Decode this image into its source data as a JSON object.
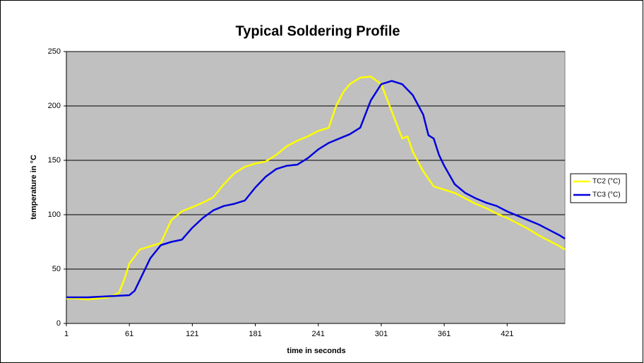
{
  "chart_data": {
    "type": "line",
    "title": "Typical Soldering Profile",
    "x_label": "time in seconds",
    "y_label": "temperature in °C",
    "xlim": [
      1,
      476
    ],
    "xticks": [
      1,
      61,
      121,
      181,
      241,
      301,
      361,
      421
    ],
    "ylim": [
      0,
      250
    ],
    "yticks": [
      0,
      50,
      100,
      150,
      200,
      250
    ],
    "grid": true,
    "legend": "right",
    "series": [
      {
        "name": "TC2 (°C)",
        "color": "#ffff00",
        "x": [
          1,
          11,
          21,
          31,
          41,
          51,
          56,
          61,
          71,
          81,
          91,
          101,
          111,
          121,
          131,
          141,
          151,
          161,
          171,
          181,
          191,
          201,
          211,
          221,
          231,
          241,
          251,
          258,
          265,
          271,
          281,
          291,
          301,
          311,
          321,
          326,
          331,
          341,
          351,
          361,
          371,
          381,
          391,
          401,
          411,
          421,
          431,
          441,
          451,
          461,
          471,
          476
        ],
        "values": [
          23,
          23,
          22,
          23,
          24,
          28,
          40,
          55,
          68,
          71,
          74,
          95,
          103,
          107,
          111,
          116,
          128,
          138,
          144,
          147,
          149,
          155,
          163,
          168,
          172,
          177,
          180,
          200,
          213,
          220,
          226,
          227,
          220,
          195,
          170,
          172,
          158,
          140,
          126,
          123,
          120,
          115,
          110,
          106,
          101,
          97,
          92,
          87,
          81,
          76,
          71,
          68
        ]
      },
      {
        "name": "TC3 (°C)",
        "color": "#0000dd",
        "x": [
          1,
          21,
          41,
          61,
          66,
          71,
          76,
          81,
          91,
          101,
          111,
          121,
          131,
          141,
          151,
          161,
          171,
          181,
          191,
          201,
          211,
          221,
          231,
          241,
          251,
          261,
          271,
          281,
          291,
          301,
          311,
          321,
          331,
          341,
          346,
          351,
          356,
          361,
          371,
          381,
          391,
          401,
          411,
          421,
          431,
          441,
          451,
          461,
          471,
          476
        ],
        "values": [
          24,
          24,
          25,
          26,
          30,
          40,
          50,
          60,
          72,
          75,
          77,
          88,
          97,
          104,
          108,
          110,
          113,
          125,
          135,
          142,
          145,
          146,
          152,
          160,
          166,
          170,
          174,
          180,
          205,
          220,
          223,
          220,
          210,
          192,
          173,
          170,
          155,
          145,
          128,
          120,
          115,
          111,
          108,
          103,
          99,
          95,
          91,
          86,
          81,
          78
        ]
      }
    ]
  }
}
